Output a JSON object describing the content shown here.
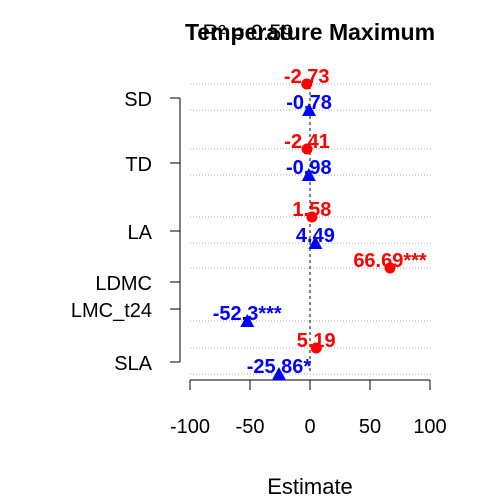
{
  "chart_data": {
    "type": "scatter",
    "title": "Temperature Maximum",
    "subtitle_overlap": "R² = 0.59",
    "xlabel": "Estimate",
    "ylabel": "",
    "xlim": [
      -100,
      100
    ],
    "xticks": [
      "-100",
      "-50",
      "0",
      "50",
      "100"
    ],
    "categories": [
      "SD",
      "TD",
      "LA",
      "LDMC",
      "LMC_t24",
      "SLA"
    ],
    "series": [
      {
        "color": "#ff0000",
        "marker": "circle",
        "points": [
          {
            "category": "SD",
            "value": -2.73,
            "label": "-2.73"
          },
          {
            "category": "TD",
            "value": -2.41,
            "label": "-2.41"
          },
          {
            "category": "LA",
            "value": 1.58,
            "label": "1.58"
          },
          {
            "category": "LDMC",
            "value": 66.69,
            "label": "66.69***"
          },
          {
            "category": "SLA",
            "value": 5.19,
            "label": "5.19"
          }
        ]
      },
      {
        "color": "#0000ff",
        "marker": "triangle",
        "points": [
          {
            "category": "SD",
            "value": -0.78,
            "label": "-0.78"
          },
          {
            "category": "TD",
            "value": -0.98,
            "label": "-0.98"
          },
          {
            "category": "LA",
            "value": 4.49,
            "label": "4.49"
          },
          {
            "category": "LMC_t24",
            "value": -52.3,
            "label": "-52.3***"
          },
          {
            "category": "SLA",
            "value": -25.86,
            "label": "-25.86*"
          }
        ]
      }
    ],
    "grid": "dotted horizontal",
    "reference_line": 0
  }
}
